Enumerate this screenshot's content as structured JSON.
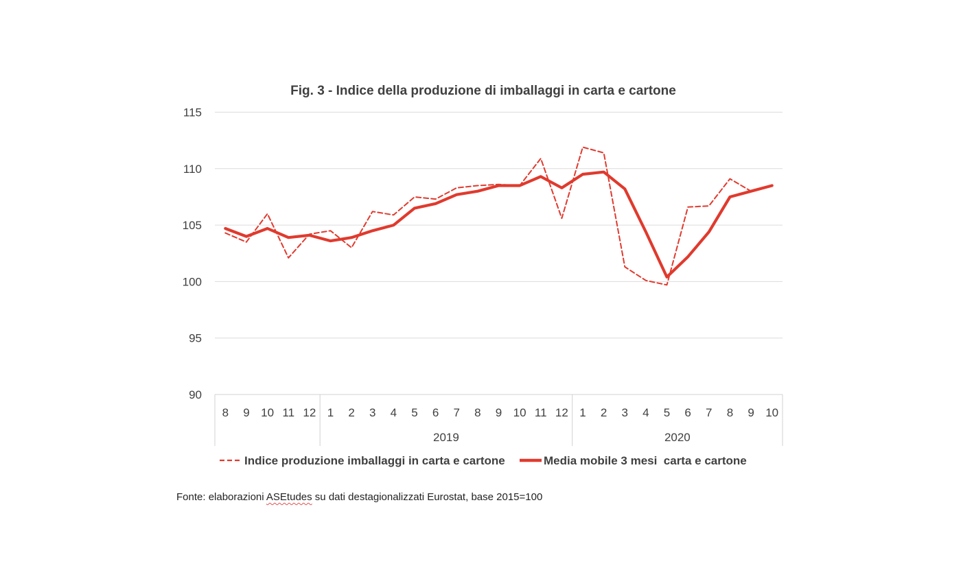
{
  "chart_data": {
    "type": "line",
    "title": "Fig. 3 - Indice della produzione di imballaggi in carta e cartone",
    "xlabel": "",
    "ylabel": "",
    "ylim": [
      90,
      115
    ],
    "yticks": [
      90,
      95,
      100,
      105,
      110,
      115
    ],
    "grid": true,
    "legend_position": "bottom",
    "categories": [
      "8",
      "9",
      "10",
      "11",
      "12",
      "1",
      "2",
      "3",
      "4",
      "5",
      "6",
      "7",
      "8",
      "9",
      "10",
      "11",
      "12",
      "1",
      "2",
      "3",
      "4",
      "5",
      "6",
      "7",
      "8",
      "9",
      "10"
    ],
    "groups": [
      {
        "label": "",
        "count": 5
      },
      {
        "label": "2019",
        "count": 12
      },
      {
        "label": "2020",
        "count": 10
      }
    ],
    "series": [
      {
        "name": "Indice produzione imballaggi in carta e cartone",
        "style": "dashed",
        "color": "#e03a2e",
        "values": [
          104.3,
          103.5,
          106.0,
          102.1,
          104.2,
          104.5,
          103.0,
          106.2,
          105.9,
          107.5,
          107.3,
          108.3,
          108.5,
          108.6,
          108.5,
          110.9,
          105.6,
          111.9,
          111.4,
          101.3,
          100.1,
          99.7,
          106.6,
          106.7,
          109.1,
          108.0,
          108.5
        ]
      },
      {
        "name": "Media mobile 3 mesi  carta e cartone",
        "style": "solid",
        "color": "#e03a2e",
        "values": [
          104.7,
          104.0,
          104.7,
          103.9,
          104.1,
          103.6,
          103.9,
          104.5,
          105.0,
          106.5,
          106.9,
          107.7,
          108.0,
          108.5,
          108.5,
          109.3,
          108.3,
          109.5,
          109.7,
          108.2,
          104.4,
          100.4,
          102.2,
          104.4,
          107.5,
          108.0,
          108.5
        ]
      }
    ]
  },
  "source": {
    "prefix": "Fonte: elaborazioni ",
    "brand": "ASEtudes",
    "suffix": " su dati destagionalizzati Eurostat, base 2015=100"
  }
}
